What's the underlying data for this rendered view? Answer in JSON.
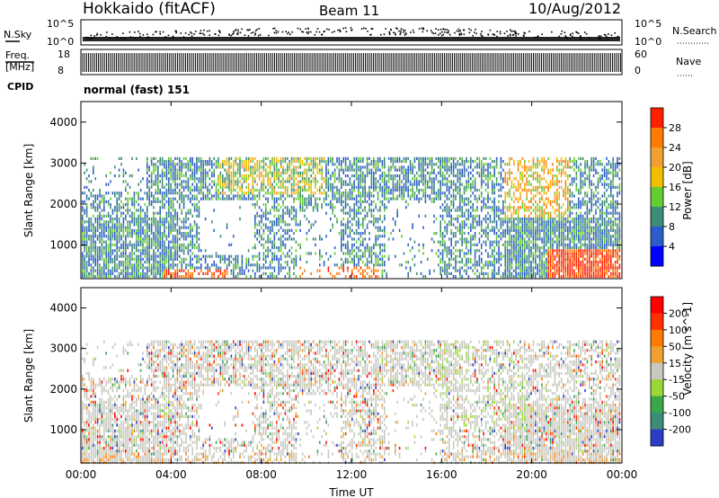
{
  "header": {
    "station": "Hokkaido (fitACF)",
    "beam": "Beam 11",
    "date": "10/Aug/2012"
  },
  "strip_labels": {
    "nsky_label": "N.Sky",
    "nsky_top": "10^5",
    "nsky_bottom": "10^0",
    "nsearch_label": "N.Search",
    "freq_label": "Freq.",
    "freq_unit": "[MHz]",
    "freq_top": "18",
    "freq_bottom": "8",
    "nave_top": "60",
    "nave_bottom": "0",
    "nave_label": "Nave",
    "cpid_label": "CPID",
    "cpid_value": "normal (fast) 151"
  },
  "chart_data": [
    {
      "type": "heatmap",
      "name": "power",
      "ylabel": "Slant Range [km]",
      "xlabel": "Time UT",
      "ylim": [
        180,
        4500
      ],
      "yticks": [
        1000,
        2000,
        3000,
        4000
      ],
      "xticks": [
        "00:00",
        "04:00",
        "08:00",
        "12:00",
        "16:00",
        "20:00",
        "00:00"
      ],
      "colorbar": {
        "label": "Power [dB]",
        "ticks": [
          "4",
          "8",
          "12",
          "16",
          "20",
          "24",
          "28"
        ],
        "colors": [
          "#0000ff",
          "#2b5cc8",
          "#3d8c78",
          "#66cc33",
          "#f0c000",
          "#f0a030",
          "#ff7a00",
          "#ff2000"
        ]
      }
    },
    {
      "type": "heatmap",
      "name": "velocity",
      "ylabel": "Slant Range [km]",
      "xlabel": "Time UT",
      "ylim": [
        180,
        4500
      ],
      "yticks": [
        1000,
        2000,
        3000,
        4000
      ],
      "xticks": [
        "00:00",
        "04:00",
        "08:00",
        "12:00",
        "16:00",
        "20:00",
        "00:00"
      ],
      "colorbar": {
        "label": "Velocity [m s^-1]",
        "ticks": [
          "200",
          "100",
          "50",
          "15",
          "-15",
          "-50",
          "-100",
          "-200"
        ],
        "colors": [
          "#2b3cc8",
          "#3d8c78",
          "#3aa84a",
          "#9ad838",
          "#c8c8c0",
          "#f0a030",
          "#ff7a00",
          "#ff3000",
          "#ff0000"
        ]
      }
    }
  ],
  "axes": {
    "time_label": "Time UT"
  }
}
